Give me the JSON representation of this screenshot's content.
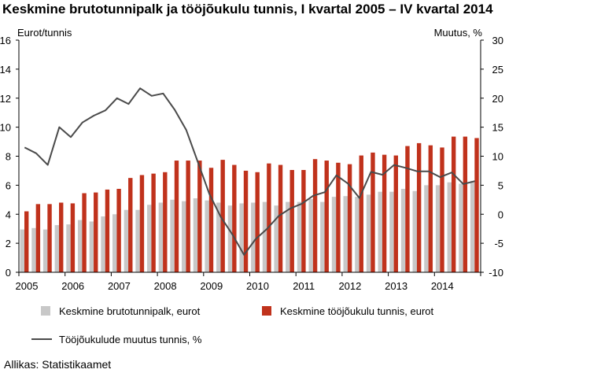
{
  "chart_data": {
    "type": "bar",
    "title": "Keskmine brutotunnipalk ja tööjõukulu tunnis, I kvartal 2005 – IV kvartal 2014",
    "ylabel_left": "Eurot/tunnis",
    "ylabel_right": "Muutus, %",
    "ylim_left": [
      0,
      16
    ],
    "ylim_right": [
      -10,
      30
    ],
    "yticks_left": [
      "0",
      "2",
      "4",
      "6",
      "8",
      "10",
      "12",
      "14",
      "16"
    ],
    "yticks_right": [
      "-10",
      "-5",
      "0",
      "5",
      "10",
      "15",
      "20",
      "25",
      "30"
    ],
    "xticks": [
      "2005",
      "2006",
      "2007",
      "2008",
      "2009",
      "2010",
      "2011",
      "2012",
      "2013",
      "2014"
    ],
    "grid": false,
    "legend_position": "bottom",
    "source": "Allikas: Statistikaamet",
    "series": [
      {
        "name": "Keskmine brutotunnipalk, eurot",
        "type": "bar",
        "axis": "left",
        "color": "#c8c8c8",
        "values": [
          2.95,
          3.05,
          2.95,
          3.25,
          3.3,
          3.6,
          3.5,
          3.85,
          4.0,
          4.3,
          4.3,
          4.65,
          4.8,
          5.0,
          4.9,
          5.1,
          4.95,
          4.8,
          4.6,
          4.75,
          4.8,
          4.85,
          4.6,
          4.85,
          4.85,
          5.05,
          4.85,
          5.2,
          5.25,
          5.2,
          5.35,
          5.55,
          5.55,
          5.75,
          5.6,
          6.0,
          6.0,
          6.2,
          6.1,
          6.3
        ]
      },
      {
        "name": "Keskmine tööjõukulu tunnis, eurot",
        "type": "bar",
        "axis": "left",
        "color": "#c0321c",
        "values": [
          4.2,
          4.7,
          4.7,
          4.8,
          4.75,
          5.45,
          5.5,
          5.7,
          5.75,
          6.5,
          6.7,
          6.8,
          6.9,
          7.7,
          7.7,
          7.7,
          7.2,
          7.75,
          7.4,
          7.0,
          6.9,
          7.5,
          7.4,
          7.05,
          7.05,
          7.8,
          7.7,
          7.55,
          7.45,
          8.05,
          8.25,
          8.1,
          8.05,
          8.7,
          8.9,
          8.75,
          8.6,
          9.35,
          9.35,
          9.25
        ]
      },
      {
        "name": "Tööjõukulude muutus tunnis, %",
        "type": "line",
        "axis": "right",
        "color": "#4a4a4a",
        "values": [
          11.5,
          10.5,
          8.5,
          15.0,
          13.3,
          15.8,
          17.0,
          17.9,
          20.0,
          19.0,
          21.7,
          20.4,
          20.8,
          18.0,
          14.5,
          9.0,
          3.5,
          -0.5,
          -3.5,
          -7.0,
          -4.3,
          -2.5,
          -0.3,
          1.0,
          1.8,
          3.2,
          3.8,
          6.7,
          5.3,
          2.8,
          7.3,
          6.8,
          8.5,
          8.0,
          7.4,
          7.4,
          6.4,
          7.2,
          5.2,
          5.7
        ]
      }
    ]
  }
}
